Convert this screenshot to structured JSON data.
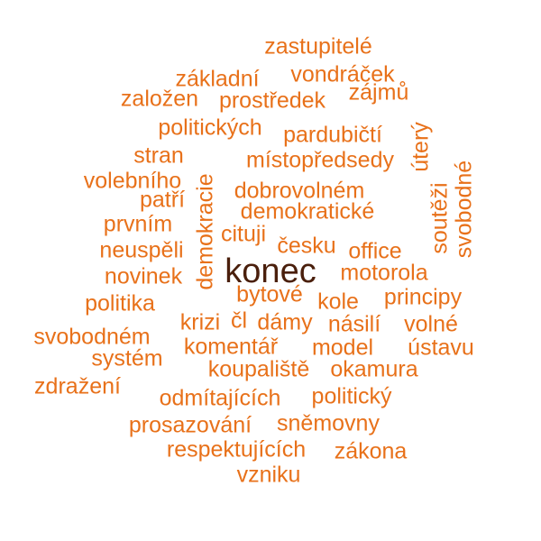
{
  "colors": {
    "accent": "#e8711a",
    "primary": "#4a1f0c",
    "background": "#ffffff"
  },
  "words": {
    "zastupitele": "zastupitelé",
    "vondracek": "vondráček",
    "zakladni": "základní",
    "zajmu": "zájmů",
    "zalozen": "založen",
    "prostredek": "prostředek",
    "politickych": "politických",
    "pardubicti": "pardubičtí",
    "utery": "úterý",
    "stran": "stran",
    "mistopredsedy": "místopředsedy",
    "volebniho": "volebního",
    "demokracie": "demokracie",
    "svobodne": "svobodné",
    "souteZi": "soutěži",
    "patri": "patří",
    "dobrovolnem": "dobrovolném",
    "demokraticke": "demokratické",
    "prvnim": "prvním",
    "cituji": "cituji",
    "cesku": "česku",
    "office": "office",
    "neuspeli": "neuspěli",
    "konec": "konec",
    "motorola": "motorola",
    "novinek": "novinek",
    "bytove": "bytové",
    "kole": "kole",
    "principy": "principy",
    "politika": "politika",
    "krizi": "krizi",
    "cl": "čl",
    "damy": "dámy",
    "nasili": "násilí",
    "volne": "volné",
    "svobodnem": "svobodném",
    "komentar": "komentář",
    "model": "model",
    "ustavu": "ústavu",
    "system": "systém",
    "koupaliste": "koupaliště",
    "okamura": "okamura",
    "zdrazeni": "zdražení",
    "odmitajicich": "odmítajících",
    "politicky": "politický",
    "prosazovani": "prosazování",
    "snemovny": "sněmovny",
    "respektujicich": "respektujících",
    "zakona": "zákona",
    "vzniku": "vzniku"
  }
}
